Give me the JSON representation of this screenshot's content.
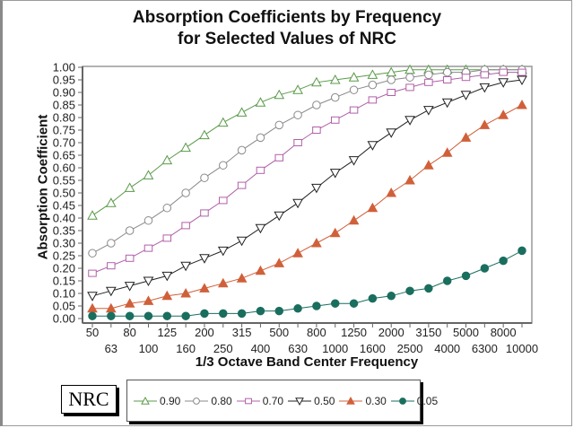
{
  "chart_data": {
    "type": "line",
    "title": "Absorption Coefficients by Frequency",
    "subtitle": "for Selected Values of NRC",
    "xlabel": "1/3 Octave Band Center Frequency",
    "ylabel": "Absorption Coefficient",
    "ylim": [
      0,
      1
    ],
    "yticks": [
      "0.00",
      "0.05",
      "0.10",
      "0.15",
      "0.20",
      "0.25",
      "0.30",
      "0.35",
      "0.40",
      "0.45",
      "0.50",
      "0.55",
      "0.60",
      "0.65",
      "0.70",
      "0.75",
      "0.80",
      "0.85",
      "0.90",
      "0.95",
      "1.00"
    ],
    "categories": [
      "50",
      "63",
      "80",
      "100",
      "125",
      "160",
      "200",
      "250",
      "315",
      "400",
      "500",
      "630",
      "800",
      "1000",
      "1250",
      "1600",
      "2000",
      "2500",
      "3150",
      "4000",
      "5000",
      "6300",
      "8000",
      "10000"
    ],
    "grid": "horizontal dashed",
    "legend_title": "NRC",
    "legend_position": "bottom",
    "series": [
      {
        "name": "0.90",
        "marker": "triangle-up-open",
        "color": "#5a9a4a",
        "values": [
          0.41,
          0.46,
          0.52,
          0.57,
          0.63,
          0.68,
          0.73,
          0.78,
          0.82,
          0.86,
          0.89,
          0.91,
          0.94,
          0.95,
          0.96,
          0.97,
          0.98,
          0.99,
          0.99,
          0.99,
          0.99,
          0.99,
          0.99,
          0.99
        ]
      },
      {
        "name": "0.80",
        "marker": "circle-open",
        "color": "#8a8a8a",
        "values": [
          0.26,
          0.3,
          0.35,
          0.39,
          0.44,
          0.5,
          0.56,
          0.61,
          0.67,
          0.72,
          0.77,
          0.81,
          0.85,
          0.88,
          0.91,
          0.93,
          0.95,
          0.96,
          0.97,
          0.98,
          0.98,
          0.99,
          0.99,
          0.99
        ]
      },
      {
        "name": "0.70",
        "marker": "square-open",
        "color": "#b060a8",
        "values": [
          0.18,
          0.21,
          0.24,
          0.28,
          0.32,
          0.37,
          0.42,
          0.47,
          0.53,
          0.59,
          0.64,
          0.7,
          0.75,
          0.79,
          0.83,
          0.87,
          0.9,
          0.92,
          0.94,
          0.95,
          0.96,
          0.97,
          0.98,
          0.98
        ]
      },
      {
        "name": "0.50",
        "marker": "triangle-down-open",
        "color": "#222222",
        "values": [
          0.09,
          0.11,
          0.13,
          0.15,
          0.17,
          0.21,
          0.24,
          0.27,
          0.31,
          0.36,
          0.41,
          0.46,
          0.52,
          0.58,
          0.63,
          0.69,
          0.74,
          0.79,
          0.83,
          0.86,
          0.89,
          0.92,
          0.94,
          0.95
        ]
      },
      {
        "name": "0.30",
        "marker": "triangle-up-filled",
        "color": "#d0603a",
        "values": [
          0.04,
          0.04,
          0.06,
          0.07,
          0.09,
          0.1,
          0.12,
          0.14,
          0.16,
          0.19,
          0.22,
          0.26,
          0.3,
          0.34,
          0.39,
          0.44,
          0.5,
          0.55,
          0.61,
          0.66,
          0.72,
          0.77,
          0.81,
          0.85
        ]
      },
      {
        "name": "0.05",
        "marker": "circle-filled",
        "color": "#1a6e5e",
        "values": [
          0.01,
          0.01,
          0.01,
          0.01,
          0.01,
          0.01,
          0.02,
          0.02,
          0.02,
          0.03,
          0.03,
          0.04,
          0.05,
          0.06,
          0.06,
          0.08,
          0.09,
          0.11,
          0.12,
          0.15,
          0.17,
          0.2,
          0.23,
          0.27
        ]
      }
    ]
  }
}
